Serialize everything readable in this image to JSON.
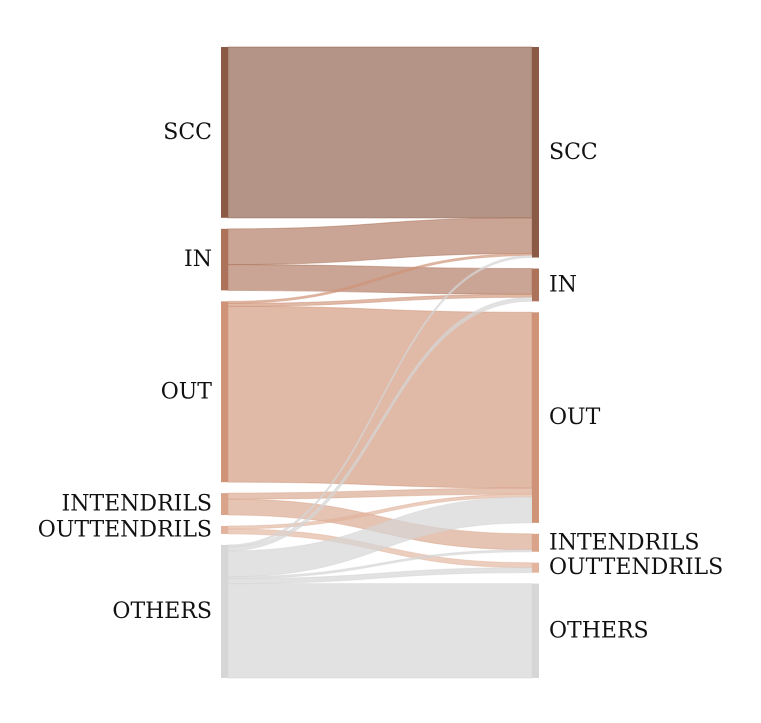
{
  "chart_data": {
    "type": "sankey",
    "left_nodes": [
      {
        "id": "SCC",
        "label": "SCC",
        "color": "#8b5a45"
      },
      {
        "id": "IN",
        "label": "IN",
        "color": "#ad735a"
      },
      {
        "id": "OUT",
        "label": "OUT",
        "color": "#cf9478"
      },
      {
        "id": "INTENDRILS",
        "label": "INTENDRILS",
        "color": "#d9a48a"
      },
      {
        "id": "OUTTENDRILS",
        "label": "OUTTENDRILS",
        "color": "#e2b39d"
      },
      {
        "id": "OTHERS",
        "label": "OTHERS",
        "color": "#d6d6d6"
      }
    ],
    "right_nodes": [
      {
        "id": "SCC",
        "label": "SCC",
        "color": "#8b5a45"
      },
      {
        "id": "IN",
        "label": "IN",
        "color": "#ad735a"
      },
      {
        "id": "OUT",
        "label": "OUT",
        "color": "#cf9478"
      },
      {
        "id": "INTENDRILS",
        "label": "INTENDRILS",
        "color": "#d9a48a"
      },
      {
        "id": "OUTTENDRILS",
        "label": "OUTTENDRILS",
        "color": "#e2b39d"
      },
      {
        "id": "OTHERS",
        "label": "OTHERS",
        "color": "#d6d6d6"
      }
    ],
    "links": [
      {
        "source": "SCC",
        "target": "SCC",
        "value": 172
      },
      {
        "source": "IN",
        "target": "SCC",
        "value": 36
      },
      {
        "source": "IN",
        "target": "IN",
        "value": 26
      },
      {
        "source": "OUT",
        "target": "SCC",
        "value": 2
      },
      {
        "source": "OUT",
        "target": "IN",
        "value": 3
      },
      {
        "source": "OUT",
        "target": "OUT",
        "value": 177
      },
      {
        "source": "INTENDRILS",
        "target": "OUT",
        "value": 6
      },
      {
        "source": "INTENDRILS",
        "target": "INTENDRILS",
        "value": 16
      },
      {
        "source": "OUTTENDRILS",
        "target": "OUT",
        "value": 3
      },
      {
        "source": "OUTTENDRILS",
        "target": "OUTTENDRILS",
        "value": 5
      },
      {
        "source": "OTHERS",
        "target": "SCC",
        "value": 2
      },
      {
        "source": "OTHERS",
        "target": "IN",
        "value": 4
      },
      {
        "source": "OTHERS",
        "target": "OUT",
        "value": 26
      },
      {
        "source": "OTHERS",
        "target": "INTENDRILS",
        "value": 2
      },
      {
        "source": "OTHERS",
        "target": "OUTTENDRILS",
        "value": 5
      },
      {
        "source": "OTHERS",
        "target": "OTHERS",
        "value": 95
      }
    ]
  }
}
